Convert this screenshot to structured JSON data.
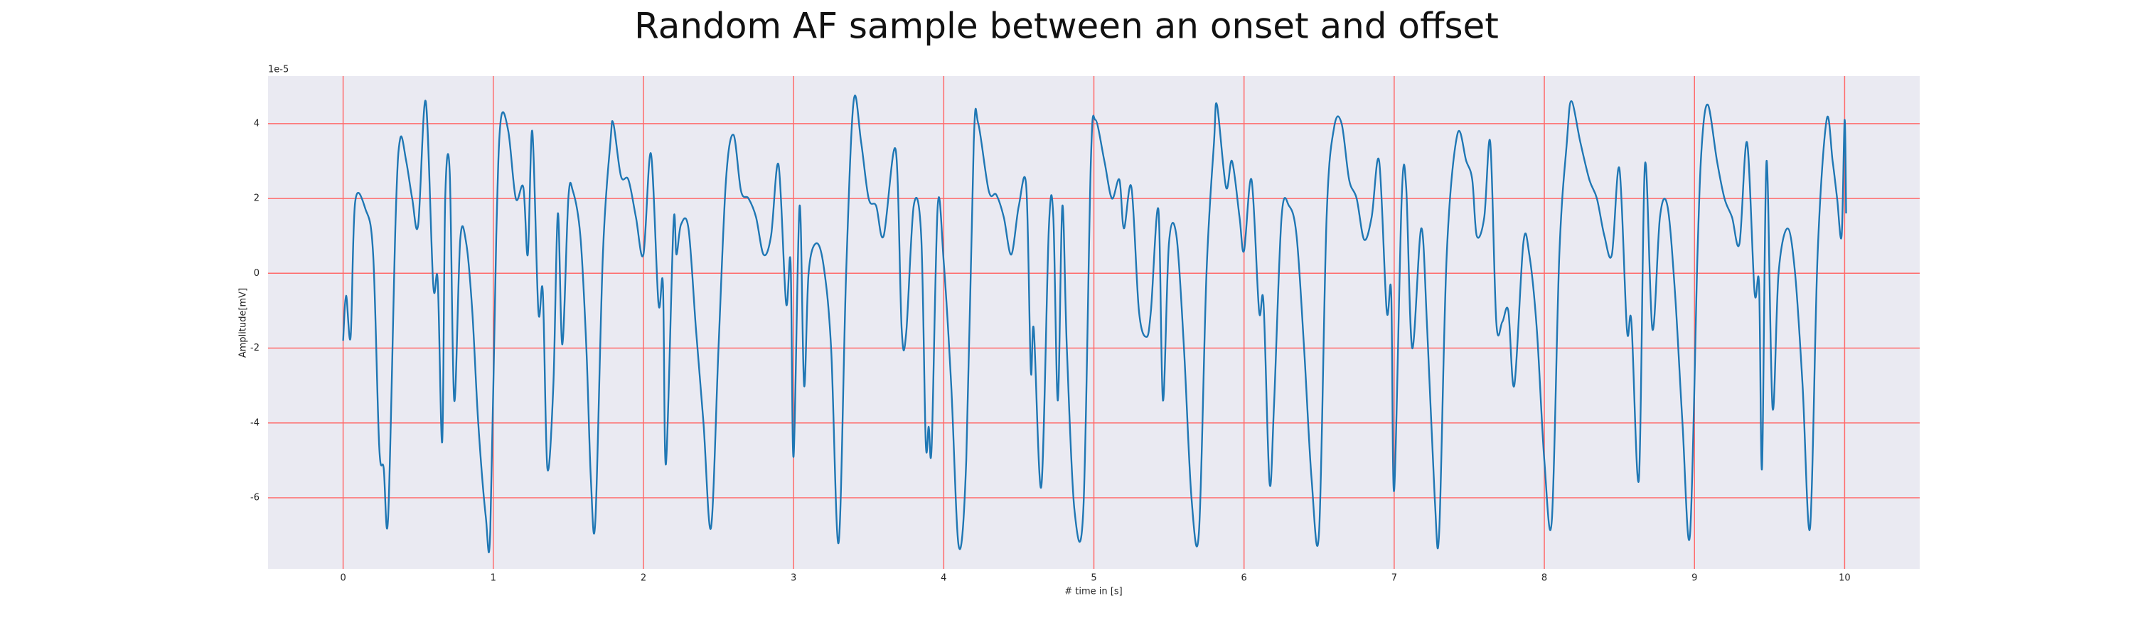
{
  "chart_data": {
    "type": "line",
    "title": "Random AF sample between an onset and offset",
    "xlabel": "# time in [s]",
    "ylabel": "Amplitude[mV]",
    "y_scale_label": "1e-5",
    "xlim": [
      -0.5,
      10.5
    ],
    "ylim": [
      -7.9,
      5.27
    ],
    "xticks": [
      0,
      1,
      2,
      3,
      4,
      5,
      6,
      7,
      8,
      9,
      10
    ],
    "yticks": [
      -6,
      -4,
      -2,
      0,
      2,
      4
    ],
    "grid": true,
    "grid_color": "#ff6b6b",
    "background": "#eaeaf2",
    "x": [
      0,
      0.02,
      0.05,
      0.08,
      0.15,
      0.2,
      0.24,
      0.27,
      0.3,
      0.35,
      0.38,
      0.42,
      0.46,
      0.5,
      0.55,
      0.6,
      0.63,
      0.66,
      0.68,
      0.71,
      0.74,
      0.78,
      0.82,
      0.86,
      0.9,
      0.95,
      0.98,
      1.02,
      1.05,
      1.1,
      1.15,
      1.2,
      1.23,
      1.26,
      1.3,
      1.33,
      1.36,
      1.4,
      1.43,
      1.46,
      1.5,
      1.53,
      1.58,
      1.62,
      1.65,
      1.68,
      1.73,
      1.78,
      1.8,
      1.85,
      1.9,
      1.95,
      2.0,
      2.05,
      2.1,
      2.13,
      2.15,
      2.2,
      2.22,
      2.25,
      2.3,
      2.35,
      2.4,
      2.45,
      2.5,
      2.55,
      2.6,
      2.65,
      2.7,
      2.75,
      2.8,
      2.85,
      2.9,
      2.95,
      2.98,
      3.0,
      3.04,
      3.07,
      3.1,
      3.15,
      3.2,
      3.25,
      3.3,
      3.35,
      3.4,
      3.45,
      3.5,
      3.55,
      3.6,
      3.68,
      3.72,
      3.75,
      3.8,
      3.85,
      3.88,
      3.9,
      3.92,
      3.96,
      4.0,
      4.05,
      4.1,
      4.15,
      4.2,
      4.23,
      4.3,
      4.35,
      4.4,
      4.45,
      4.5,
      4.55,
      4.58,
      4.6,
      4.65,
      4.7,
      4.73,
      4.76,
      4.79,
      4.82,
      4.87,
      4.93,
      4.98,
      5.01,
      5.07,
      5.12,
      5.17,
      5.2,
      5.25,
      5.3,
      5.35,
      5.38,
      5.43,
      5.46,
      5.5,
      5.55,
      5.6,
      5.65,
      5.7,
      5.75,
      5.8,
      5.82,
      5.88,
      5.92,
      5.97,
      6.0,
      6.05,
      6.1,
      6.13,
      6.17,
      6.2,
      6.25,
      6.3,
      6.35,
      6.4,
      6.45,
      6.5,
      6.55,
      6.6,
      6.65,
      6.7,
      6.75,
      6.8,
      6.85,
      6.9,
      6.95,
      6.98,
      7.0,
      7.05,
      7.08,
      7.12,
      7.18,
      7.22,
      7.27,
      7.3,
      7.35,
      7.42,
      7.48,
      7.52,
      7.55,
      7.6,
      7.64,
      7.68,
      7.72,
      7.76,
      7.8,
      7.86,
      7.9,
      7.95,
      8.0,
      8.05,
      8.1,
      8.15,
      8.18,
      8.24,
      8.3,
      8.35,
      8.4,
      8.45,
      8.5,
      8.55,
      8.58,
      8.63,
      8.67,
      8.72,
      8.77,
      8.82,
      8.87,
      8.92,
      8.97,
      9.02,
      9.05,
      9.09,
      9.15,
      9.2,
      9.25,
      9.3,
      9.35,
      9.4,
      9.43,
      9.45,
      9.48,
      9.52,
      9.56,
      9.62,
      9.67,
      9.72,
      9.77,
      9.82,
      9.88,
      9.92,
      9.95,
      9.98,
      10.0,
      10.01
    ],
    "series": [
      {
        "color": "#1f77b4",
        "values": [
          -1.8,
          -0.6,
          -1.7,
          1.9,
          1.7,
          0.5,
          -4.6,
          -5.2,
          -6.5,
          1.5,
          3.6,
          3.0,
          2.0,
          1.3,
          4.6,
          -0.3,
          -0.2,
          -4.5,
          2.0,
          2.7,
          -3.4,
          0.9,
          0.8,
          -1.0,
          -4.0,
          -6.5,
          -6.9,
          1.0,
          4.1,
          3.8,
          2.0,
          2.3,
          0.5,
          3.8,
          -1.0,
          -0.5,
          -5.2,
          -3.0,
          1.6,
          -1.9,
          2.0,
          2.2,
          1.0,
          -2.0,
          -5.5,
          -6.6,
          0.5,
          3.5,
          4.0,
          2.6,
          2.5,
          1.5,
          0.5,
          3.2,
          -0.8,
          -0.3,
          -5.1,
          1.3,
          0.5,
          1.3,
          1.2,
          -1.5,
          -4.0,
          -6.8,
          -2.0,
          2.5,
          3.7,
          2.2,
          2.0,
          1.5,
          0.5,
          1.0,
          2.9,
          -0.8,
          0.3,
          -4.9,
          1.8,
          -3.0,
          0.0,
          0.8,
          0.2,
          -2.0,
          -7.2,
          0.0,
          4.6,
          3.5,
          2.0,
          1.8,
          1.0,
          3.3,
          -1.5,
          -1.6,
          1.8,
          1.0,
          -4.5,
          -4.1,
          -4.6,
          1.8,
          0.3,
          -3.0,
          -7.3,
          -5.0,
          3.5,
          4.0,
          2.2,
          2.1,
          1.5,
          0.5,
          1.8,
          2.3,
          -2.6,
          -1.5,
          -5.7,
          1.2,
          1.5,
          -3.4,
          1.8,
          -2.0,
          -6.3,
          -6.3,
          3.0,
          4.1,
          3.0,
          2.0,
          2.5,
          1.2,
          2.3,
          -1.0,
          -1.7,
          -1.0,
          1.7,
          -3.4,
          0.8,
          1.0,
          -2.0,
          -6.0,
          -6.9,
          0.0,
          3.5,
          4.5,
          2.3,
          3.0,
          1.5,
          0.6,
          2.5,
          -1.0,
          -0.8,
          -5.6,
          -3.5,
          1.5,
          1.8,
          1.0,
          -2.0,
          -5.5,
          -6.9,
          1.5,
          3.9,
          4.0,
          2.5,
          2.0,
          0.9,
          1.5,
          3.0,
          -1.0,
          -0.5,
          -5.8,
          2.0,
          2.3,
          -2.0,
          1.2,
          -1.5,
          -6.0,
          -6.9,
          0.5,
          3.7,
          3.0,
          2.5,
          1.0,
          1.5,
          3.5,
          -1.3,
          -1.3,
          -1.0,
          -3.0,
          0.8,
          0.5,
          -1.5,
          -5.0,
          -6.6,
          0.5,
          3.5,
          4.6,
          3.5,
          2.5,
          2.0,
          1.0,
          0.5,
          2.8,
          -1.5,
          -1.3,
          -5.5,
          2.9,
          -1.5,
          1.5,
          1.8,
          -0.5,
          -4.0,
          -7.0,
          0.5,
          3.5,
          4.5,
          3.0,
          2.0,
          1.5,
          0.8,
          3.5,
          -0.5,
          -0.3,
          -5.2,
          3.0,
          -3.6,
          0.0,
          1.2,
          0.0,
          -3.0,
          -6.8,
          0.5,
          4.1,
          3.0,
          2.0,
          1.0,
          4.1,
          1.6
        ]
      }
    ]
  }
}
